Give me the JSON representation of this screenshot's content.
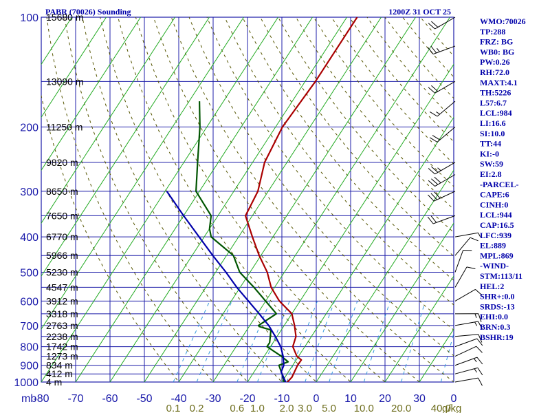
{
  "title": "PABR (70026) Sounding",
  "valid_time": "1200Z 31 OCT 25",
  "indices": [
    "WMO:70026",
    "TP:288",
    "FRZ: BG",
    "WB0: BG",
    "PW:0.26",
    "RH:72.0",
    "MAXT:4.1",
    "TH:5226",
    "L57:6.7",
    "LCL:984",
    "LI:16.6",
    "SI:10.0",
    "TT:44",
    "KI:-0",
    "SW:59",
    "EI:2.8",
    "-PARCEL-",
    "CAPE:6",
    "CINH:0",
    "LCL:944",
    "CAP:16.5",
    "LFC:939",
    "EL:889",
    "MPL:869",
    "-WIND-",
    "STM:113/11",
    "HEL:2",
    "SHR+:0.0",
    "SRDS:-13",
    "EHI:0.0",
    "BRN:0.3",
    "BSHR:19"
  ],
  "colors": {
    "grid": "#1c1ca8",
    "skewed_isotherm": "#22aa22",
    "temperature": "#aa0000",
    "dewpoint": "#005500",
    "parcel": "#0000aa",
    "dry_adiabat": "#555500",
    "mixing_ratio": "#3399dd"
  },
  "chart_data": {
    "type": "line",
    "title": "PABR (70026) Sounding",
    "subtitle": "1200Z 31 OCT 25",
    "pressure_unit": "mb",
    "mixing_ratio_unit": "g/kg",
    "pressure_ticks": [
      100,
      200,
      300,
      400,
      500,
      600,
      700,
      800,
      900,
      1000
    ],
    "temperature_ticks": [
      "-80",
      "-70",
      "-60",
      "-50",
      "-40",
      "-30",
      "-20",
      "-10",
      "0",
      "10",
      "20",
      "30",
      "0"
    ],
    "xlim": [
      -80,
      40
    ],
    "ylim_log_p": [
      1000,
      100
    ],
    "height_labels": [
      {
        "p": 100,
        "label": "15680 m"
      },
      {
        "p": 150,
        "label": "13090 m"
      },
      {
        "p": 200,
        "label": "11250 m"
      },
      {
        "p": 250,
        "label": "9820 m"
      },
      {
        "p": 300,
        "label": "8650 m"
      },
      {
        "p": 350,
        "label": "7650 m"
      },
      {
        "p": 400,
        "label": "6770 m"
      },
      {
        "p": 450,
        "label": "5966 m"
      },
      {
        "p": 500,
        "label": "5230 m"
      },
      {
        "p": 550,
        "label": "4547 m"
      },
      {
        "p": 600,
        "label": "3912 m"
      },
      {
        "p": 650,
        "label": "3318 m"
      },
      {
        "p": 700,
        "label": "2763 m"
      },
      {
        "p": 750,
        "label": "2238 m"
      },
      {
        "p": 800,
        "label": "1742 m"
      },
      {
        "p": 850,
        "label": "1273 m"
      },
      {
        "p": 900,
        "label": "834 m"
      },
      {
        "p": 950,
        "label": "412 m"
      },
      {
        "p": 1000,
        "label": "4 m"
      }
    ],
    "mixing_ratio_labels": [
      "0.1",
      "0.2",
      "0.6",
      "1.0",
      "2.0",
      "3.0",
      "5.0",
      "10.0",
      "20.0",
      "40.0"
    ],
    "mixing_ratio_values": [
      0.1,
      0.2,
      0.6,
      1.0,
      2.0,
      3.0,
      5.0,
      10.0,
      20.0,
      40.0
    ],
    "series": [
      {
        "key": "temperature",
        "points": [
          [
            1008,
            -8.5
          ],
          [
            970,
            -8.0
          ],
          [
            900,
            -8.6
          ],
          [
            870,
            -8.5
          ],
          [
            850,
            -10.5
          ],
          [
            800,
            -13.5
          ],
          [
            750,
            -14.5
          ],
          [
            700,
            -17
          ],
          [
            650,
            -20
          ],
          [
            600,
            -26
          ],
          [
            550,
            -31
          ],
          [
            500,
            -35
          ],
          [
            450,
            -40.5
          ],
          [
            400,
            -46
          ],
          [
            350,
            -52
          ],
          [
            300,
            -53
          ],
          [
            250,
            -56.5
          ],
          [
            200,
            -58
          ],
          [
            150,
            -57
          ],
          [
            100,
            -57
          ]
        ]
      },
      {
        "key": "dewpoint",
        "points": [
          [
            1008,
            -9
          ],
          [
            950,
            -11.5
          ],
          [
            900,
            -14
          ],
          [
            880,
            -12
          ],
          [
            850,
            -15
          ],
          [
            800,
            -21
          ],
          [
            780,
            -21
          ],
          [
            720,
            -23
          ],
          [
            705,
            -27
          ],
          [
            700,
            -27.5
          ],
          [
            650,
            -24.5
          ],
          [
            600,
            -30
          ],
          [
            550,
            -36
          ],
          [
            500,
            -43
          ],
          [
            450,
            -48
          ],
          [
            400,
            -58
          ],
          [
            380,
            -60
          ],
          [
            350,
            -62
          ],
          [
            300,
            -71
          ],
          [
            250,
            -76
          ],
          [
            200,
            -82
          ],
          [
            170,
            -87
          ]
        ]
      },
      {
        "key": "parcel",
        "points": [
          [
            1008,
            -8.5
          ],
          [
            944,
            -11.8
          ],
          [
            939,
            -12.1
          ],
          [
            900,
            -12.6
          ],
          [
            850,
            -14.5
          ],
          [
            800,
            -17
          ],
          [
            750,
            -20.5
          ],
          [
            700,
            -24.5
          ],
          [
            650,
            -29.5
          ],
          [
            600,
            -35
          ],
          [
            550,
            -41
          ],
          [
            500,
            -47
          ],
          [
            450,
            -54
          ],
          [
            400,
            -61.5
          ],
          [
            350,
            -70
          ],
          [
            300,
            -79.5
          ]
        ]
      }
    ],
    "wind_barbs": [
      {
        "p": 1000,
        "dir": 80,
        "spd": 10
      },
      {
        "p": 950,
        "dir": 75,
        "spd": 15
      },
      {
        "p": 900,
        "dir": 70,
        "spd": 15
      },
      {
        "p": 850,
        "dir": 65,
        "spd": 10
      },
      {
        "p": 800,
        "dir": 70,
        "spd": 10
      },
      {
        "p": 750,
        "dir": 85,
        "spd": 10
      },
      {
        "p": 700,
        "dir": 80,
        "spd": 15
      },
      {
        "p": 650,
        "dir": 90,
        "spd": 15
      },
      {
        "p": 600,
        "dir": 60,
        "spd": 10
      },
      {
        "p": 550,
        "dir": 30,
        "spd": 10
      },
      {
        "p": 500,
        "dir": 20,
        "spd": 10
      },
      {
        "p": 450,
        "dir": 40,
        "spd": 10
      },
      {
        "p": 400,
        "dir": 80,
        "spd": 5
      },
      {
        "p": 350,
        "dir": 250,
        "spd": 20
      },
      {
        "p": 300,
        "dir": 245,
        "spd": 30
      },
      {
        "p": 270,
        "dir": 240,
        "spd": 30
      },
      {
        "p": 250,
        "dir": 240,
        "spd": 25
      },
      {
        "p": 200,
        "dir": 230,
        "spd": 20
      },
      {
        "p": 170,
        "dir": 230,
        "spd": 15
      },
      {
        "p": 150,
        "dir": 240,
        "spd": 20
      },
      {
        "p": 120,
        "dir": 250,
        "spd": 25
      },
      {
        "p": 100,
        "dir": 240,
        "spd": 20
      }
    ]
  }
}
